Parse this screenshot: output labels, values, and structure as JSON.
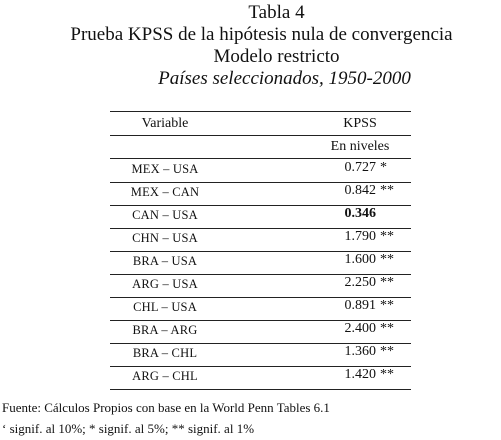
{
  "title": {
    "line1": "Tabla 4",
    "line2": "Prueba KPSS de la hipótesis nula de convergencia",
    "line3": "Modelo restricto",
    "line4": "Países seleccionados, 1950-2000"
  },
  "table": {
    "header_variable": "Variable",
    "header_kpss": "KPSS",
    "subheader": "En niveles",
    "rows": [
      {
        "variable": "MEX – USA",
        "value": "0.727",
        "sig": "*"
      },
      {
        "variable": "MEX – CAN",
        "value": "0.842",
        "sig": "**"
      },
      {
        "variable": "CAN – USA",
        "value": "0.346",
        "sig": ""
      },
      {
        "variable": "CHN – USA",
        "value": "1.790",
        "sig": "**"
      },
      {
        "variable": "BRA – USA",
        "value": "1.600",
        "sig": "**"
      },
      {
        "variable": "ARG – USA",
        "value": "2.250",
        "sig": "**"
      },
      {
        "variable": "CHL – USA",
        "value": "0.891",
        "sig": "**"
      },
      {
        "variable": "BRA – ARG",
        "value": "2.400",
        "sig": "**"
      },
      {
        "variable": "BRA – CHL",
        "value": "1.360",
        "sig": "**"
      },
      {
        "variable": "ARG – CHL",
        "value": "1.420",
        "sig": "**"
      }
    ]
  },
  "footer": {
    "source": "Fuente: Cálculos Propios con base en la World Penn Tables 6.1",
    "notes": "‘ signif. al 10%; * signif. al 5%; ** signif. al 1%"
  }
}
